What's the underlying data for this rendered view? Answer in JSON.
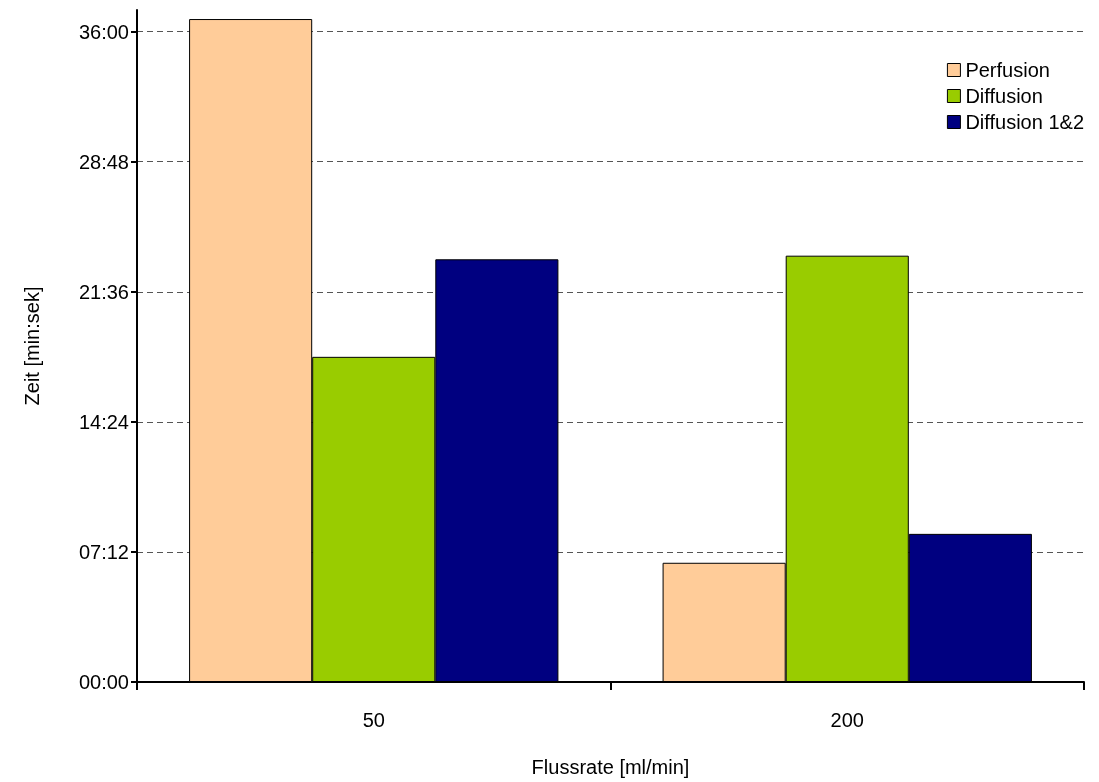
{
  "chart_data": {
    "type": "bar",
    "xlabel": "Flussrate [ml/min]",
    "ylabel": "Zeit [min:sek]",
    "categories": [
      "50",
      "200"
    ],
    "series": [
      {
        "name": "Perfusion",
        "color": "#ffcc99",
        "values": [
          36.7,
          6.6
        ]
      },
      {
        "name": "Diffusion",
        "color": "#99cc00",
        "values": [
          18.0,
          23.6
        ]
      },
      {
        "name": "Diffusion 1&2",
        "color": "#000080",
        "values": [
          23.4,
          8.2
        ]
      }
    ],
    "ylim": [
      0,
      37.2
    ],
    "yticks": [
      {
        "value": 0,
        "label": "00:00"
      },
      {
        "value": 7.2,
        "label": "07:12"
      },
      {
        "value": 14.4,
        "label": "14:24"
      },
      {
        "value": 21.6,
        "label": "21:36"
      },
      {
        "value": 28.8,
        "label": "28:48"
      },
      {
        "value": 36,
        "label": "36:00"
      }
    ],
    "grid": "y",
    "legend": "top right"
  }
}
